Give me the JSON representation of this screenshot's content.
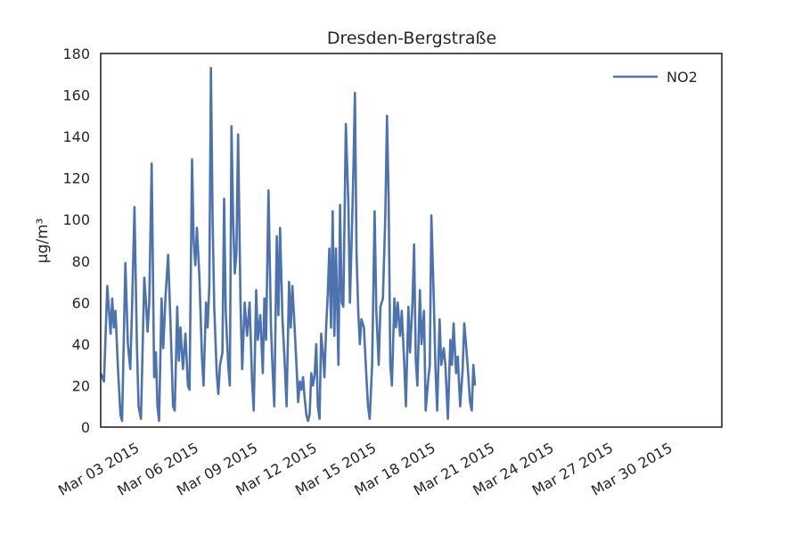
{
  "chart_data": {
    "type": "line",
    "title": "Dresden-Bergstraße",
    "xlabel": "",
    "ylabel": "µg/m³",
    "ylim": [
      0,
      180
    ],
    "yticks": [
      0,
      20,
      40,
      60,
      80,
      100,
      120,
      140,
      160,
      180
    ],
    "xlim": [
      "2015-03-01 12:00",
      "2015-04-01 23:00"
    ],
    "xticks": [
      {
        "date": "2015-03-03",
        "label": "Mar 03 2015"
      },
      {
        "date": "2015-03-06",
        "label": "Mar 06 2015"
      },
      {
        "date": "2015-03-09",
        "label": "Mar 09 2015"
      },
      {
        "date": "2015-03-12",
        "label": "Mar 12 2015"
      },
      {
        "date": "2015-03-15",
        "label": "Mar 15 2015"
      },
      {
        "date": "2015-03-18",
        "label": "Mar 18 2015"
      },
      {
        "date": "2015-03-21",
        "label": "Mar 21 2015"
      },
      {
        "date": "2015-03-24",
        "label": "Mar 24 2015"
      },
      {
        "date": "2015-03-27",
        "label": "Mar 27 2015"
      },
      {
        "date": "2015-03-30",
        "label": "Mar 30 2015"
      }
    ],
    "grid": false,
    "legend_position": "top-right",
    "series": [
      {
        "name": "NO2",
        "color": "#4c72b0",
        "points": [
          [
            "2015-03-01 12:00",
            26
          ],
          [
            "2015-03-01 16:00",
            22
          ],
          [
            "2015-03-01 20:00",
            68
          ],
          [
            "2015-03-02 00:00",
            45
          ],
          [
            "2015-03-02 02:00",
            62
          ],
          [
            "2015-03-02 04:00",
            48
          ],
          [
            "2015-03-02 06:00",
            56
          ],
          [
            "2015-03-02 09:00",
            28
          ],
          [
            "2015-03-02 12:00",
            6
          ],
          [
            "2015-03-02 14:00",
            3
          ],
          [
            "2015-03-02 18:00",
            79
          ],
          [
            "2015-03-02 21:00",
            40
          ],
          [
            "2015-03-03 00:00",
            28
          ],
          [
            "2015-03-03 02:00",
            56
          ],
          [
            "2015-03-03 05:00",
            106
          ],
          [
            "2015-03-03 08:00",
            40
          ],
          [
            "2015-03-03 10:00",
            10
          ],
          [
            "2015-03-03 13:00",
            4
          ],
          [
            "2015-03-03 17:00",
            72
          ],
          [
            "2015-03-03 19:00",
            60
          ],
          [
            "2015-03-03 21:00",
            46
          ],
          [
            "2015-03-03 23:00",
            60
          ],
          [
            "2015-03-04 02:00",
            127
          ],
          [
            "2015-03-04 05:00",
            24
          ],
          [
            "2015-03-04 07:00",
            36
          ],
          [
            "2015-03-04 09:00",
            10
          ],
          [
            "2015-03-04 11:00",
            3
          ],
          [
            "2015-03-04 14:00",
            62
          ],
          [
            "2015-03-04 16:00",
            38
          ],
          [
            "2015-03-04 19:00",
            64
          ],
          [
            "2015-03-04 22:00",
            83
          ],
          [
            "2015-03-05 01:00",
            48
          ],
          [
            "2015-03-05 04:00",
            10
          ],
          [
            "2015-03-05 06:00",
            8
          ],
          [
            "2015-03-05 09:00",
            58
          ],
          [
            "2015-03-05 11:00",
            32
          ],
          [
            "2015-03-05 13:00",
            48
          ],
          [
            "2015-03-05 16:00",
            28
          ],
          [
            "2015-03-05 19:00",
            45
          ],
          [
            "2015-03-05 22:00",
            20
          ],
          [
            "2015-03-06 00:00",
            18
          ],
          [
            "2015-03-06 03:00",
            129
          ],
          [
            "2015-03-06 05:00",
            90
          ],
          [
            "2015-03-06 07:00",
            78
          ],
          [
            "2015-03-06 09:00",
            96
          ],
          [
            "2015-03-06 12:00",
            72
          ],
          [
            "2015-03-06 15:00",
            34
          ],
          [
            "2015-03-06 17:00",
            20
          ],
          [
            "2015-03-06 20:00",
            60
          ],
          [
            "2015-03-06 22:00",
            48
          ],
          [
            "2015-03-07 00:00",
            68
          ],
          [
            "2015-03-07 02:00",
            173
          ],
          [
            "2015-03-07 04:00",
            100
          ],
          [
            "2015-03-07 06:00",
            58
          ],
          [
            "2015-03-07 09:00",
            26
          ],
          [
            "2015-03-07 11:00",
            16
          ],
          [
            "2015-03-07 13:00",
            30
          ],
          [
            "2015-03-07 16:00",
            36
          ],
          [
            "2015-03-07 18:00",
            110
          ],
          [
            "2015-03-07 20:00",
            56
          ],
          [
            "2015-03-07 23:00",
            30
          ],
          [
            "2015-03-08 01:00",
            20
          ],
          [
            "2015-03-08 03:00",
            145
          ],
          [
            "2015-03-08 05:00",
            100
          ],
          [
            "2015-03-08 07:00",
            74
          ],
          [
            "2015-03-08 09:00",
            84
          ],
          [
            "2015-03-08 11:00",
            141
          ],
          [
            "2015-03-08 14:00",
            60
          ],
          [
            "2015-03-08 16:00",
            28
          ],
          [
            "2015-03-08 19:00",
            60
          ],
          [
            "2015-03-08 22:00",
            44
          ],
          [
            "2015-03-09 01:00",
            60
          ],
          [
            "2015-03-09 04:00",
            22
          ],
          [
            "2015-03-09 06:00",
            8
          ],
          [
            "2015-03-09 09:00",
            66
          ],
          [
            "2015-03-09 11:00",
            42
          ],
          [
            "2015-03-09 14:00",
            54
          ],
          [
            "2015-03-09 17:00",
            26
          ],
          [
            "2015-03-09 19:00",
            62
          ],
          [
            "2015-03-09 21:00",
            42
          ],
          [
            "2015-03-10 00:00",
            114
          ],
          [
            "2015-03-10 03:00",
            48
          ],
          [
            "2015-03-10 05:00",
            28
          ],
          [
            "2015-03-10 07:00",
            10
          ],
          [
            "2015-03-10 10:00",
            92
          ],
          [
            "2015-03-10 12:00",
            54
          ],
          [
            "2015-03-10 14:00",
            96
          ],
          [
            "2015-03-10 17:00",
            52
          ],
          [
            "2015-03-10 20:00",
            28
          ],
          [
            "2015-03-10 22:00",
            10
          ],
          [
            "2015-03-11 01:00",
            70
          ],
          [
            "2015-03-11 03:00",
            48
          ],
          [
            "2015-03-11 05:00",
            68
          ],
          [
            "2015-03-11 07:00",
            54
          ],
          [
            "2015-03-11 10:00",
            30
          ],
          [
            "2015-03-11 12:00",
            12
          ],
          [
            "2015-03-11 14:00",
            22
          ],
          [
            "2015-03-11 16:00",
            18
          ],
          [
            "2015-03-11 18:00",
            24
          ],
          [
            "2015-03-11 20:00",
            14
          ],
          [
            "2015-03-11 22:00",
            6
          ],
          [
            "2015-03-12 00:00",
            3
          ],
          [
            "2015-03-12 02:00",
            6
          ],
          [
            "2015-03-12 04:00",
            26
          ],
          [
            "2015-03-12 06:00",
            20
          ],
          [
            "2015-03-12 08:00",
            25
          ],
          [
            "2015-03-12 10:00",
            40
          ],
          [
            "2015-03-12 12:00",
            10
          ],
          [
            "2015-03-12 14:00",
            4
          ],
          [
            "2015-03-12 16:00",
            45
          ],
          [
            "2015-03-12 18:00",
            36
          ],
          [
            "2015-03-12 20:00",
            24
          ],
          [
            "2015-03-12 22:00",
            48
          ],
          [
            "2015-03-13 00:00",
            64
          ],
          [
            "2015-03-13 02:00",
            86
          ],
          [
            "2015-03-13 04:00",
            48
          ],
          [
            "2015-03-13 06:00",
            104
          ],
          [
            "2015-03-13 08:00",
            44
          ],
          [
            "2015-03-13 10:00",
            86
          ],
          [
            "2015-03-13 13:00",
            30
          ],
          [
            "2015-03-13 15:00",
            107
          ],
          [
            "2015-03-13 17:00",
            60
          ],
          [
            "2015-03-13 19:00",
            58
          ],
          [
            "2015-03-13 22:00",
            146
          ],
          [
            "2015-03-14 01:00",
            108
          ],
          [
            "2015-03-14 03:00",
            60
          ],
          [
            "2015-03-14 05:00",
            90
          ],
          [
            "2015-03-14 07:00",
            120
          ],
          [
            "2015-03-14 09:00",
            161
          ],
          [
            "2015-03-14 11:00",
            84
          ],
          [
            "2015-03-14 13:00",
            56
          ],
          [
            "2015-03-14 15:00",
            40
          ],
          [
            "2015-03-14 17:00",
            52
          ],
          [
            "2015-03-14 20:00",
            48
          ],
          [
            "2015-03-14 23:00",
            24
          ],
          [
            "2015-03-15 01:00",
            10
          ],
          [
            "2015-03-15 03:00",
            4
          ],
          [
            "2015-03-15 06:00",
            30
          ],
          [
            "2015-03-15 09:00",
            104
          ],
          [
            "2015-03-15 11:00",
            56
          ],
          [
            "2015-03-15 14:00",
            30
          ],
          [
            "2015-03-15 16:00",
            58
          ],
          [
            "2015-03-15 19:00",
            62
          ],
          [
            "2015-03-15 22:00",
            102
          ],
          [
            "2015-03-16 00:00",
            150
          ],
          [
            "2015-03-16 02:00",
            110
          ],
          [
            "2015-03-16 04:00",
            30
          ],
          [
            "2015-03-16 06:00",
            20
          ],
          [
            "2015-03-16 09:00",
            62
          ],
          [
            "2015-03-16 11:00",
            48
          ],
          [
            "2015-03-16 13:00",
            60
          ],
          [
            "2015-03-16 16:00",
            44
          ],
          [
            "2015-03-16 18:00",
            56
          ],
          [
            "2015-03-16 21:00",
            30
          ],
          [
            "2015-03-16 23:00",
            10
          ],
          [
            "2015-03-17 02:00",
            58
          ],
          [
            "2015-03-17 04:00",
            36
          ],
          [
            "2015-03-17 07:00",
            60
          ],
          [
            "2015-03-17 09:00",
            88
          ],
          [
            "2015-03-17 11:00",
            32
          ],
          [
            "2015-03-17 13:00",
            20
          ],
          [
            "2015-03-17 16:00",
            66
          ],
          [
            "2015-03-17 18:00",
            40
          ],
          [
            "2015-03-17 21:00",
            56
          ],
          [
            "2015-03-17 23:00",
            8
          ],
          [
            "2015-03-18 02:00",
            22
          ],
          [
            "2015-03-18 04:00",
            30
          ],
          [
            "2015-03-18 06:00",
            102
          ],
          [
            "2015-03-18 09:00",
            60
          ],
          [
            "2015-03-18 11:00",
            28
          ],
          [
            "2015-03-18 13:00",
            8
          ],
          [
            "2015-03-18 16:00",
            52
          ],
          [
            "2015-03-18 18:00",
            30
          ],
          [
            "2015-03-18 21:00",
            38
          ],
          [
            "2015-03-18 23:00",
            30
          ],
          [
            "2015-03-19 02:00",
            4
          ],
          [
            "2015-03-19 05:00",
            42
          ],
          [
            "2015-03-19 07:00",
            30
          ],
          [
            "2015-03-19 09:00",
            50
          ],
          [
            "2015-03-19 12:00",
            26
          ],
          [
            "2015-03-19 14:00",
            34
          ],
          [
            "2015-03-19 17:00",
            10
          ],
          [
            "2015-03-19 20:00",
            28
          ],
          [
            "2015-03-19 22:00",
            50
          ],
          [
            "2015-03-20 00:00",
            40
          ],
          [
            "2015-03-20 02:00",
            30
          ],
          [
            "2015-03-20 05:00",
            12
          ],
          [
            "2015-03-20 07:00",
            8
          ],
          [
            "2015-03-20 09:00",
            30
          ],
          [
            "2015-03-20 11:00",
            20
          ]
        ]
      }
    ]
  }
}
